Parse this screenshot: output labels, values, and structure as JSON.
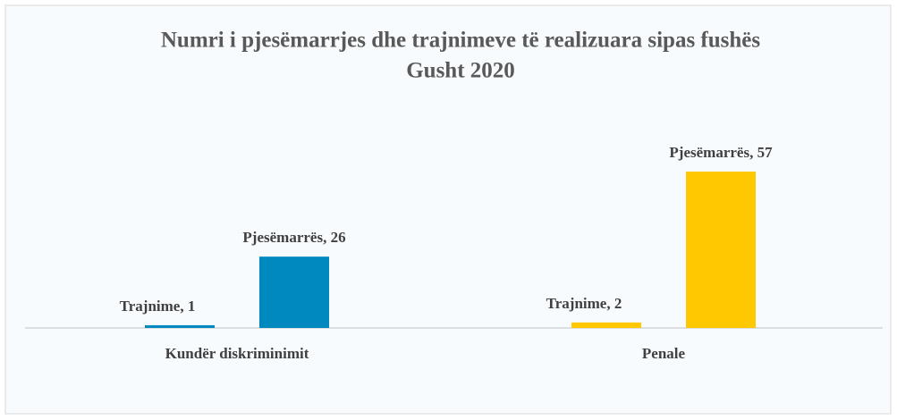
{
  "chart_data": {
    "type": "bar",
    "title": "Numri i pjesëmarrjes dhe trajnimeve të realizuara sipas fushës",
    "subtitle": "Gusht 2020",
    "categories": [
      "Kundër diskriminimit",
      "Penale"
    ],
    "series": [
      {
        "colors": [
          "#0089bf",
          "#ffc800"
        ],
        "values": [
          1,
          2
        ],
        "value_labels": [
          "Trajnime, 1",
          "Trajnime, 2"
        ]
      },
      {
        "colors": [
          "#0089bf",
          "#ffc800"
        ],
        "values": [
          26,
          57
        ],
        "value_labels": [
          "Pjesëmarrës, 26",
          "Pjesëmarrës, 57"
        ]
      }
    ]
  }
}
